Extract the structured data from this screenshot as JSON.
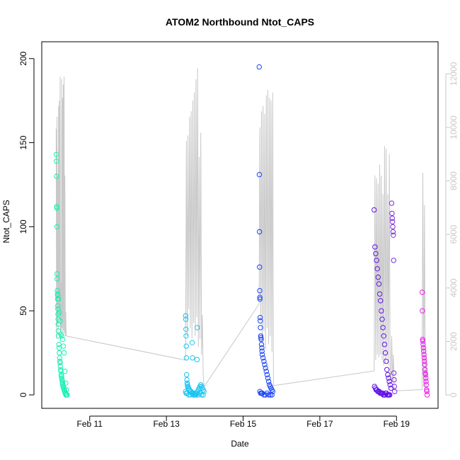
{
  "chart_data": {
    "type": "scatter",
    "title": "ATOM2 Northbound Ntot_CAPS",
    "xlabel": "Date",
    "ylabel": "Ntot_CAPS",
    "xlim": [
      "2000-02-09T18:00",
      "2000-02-20T02:00"
    ],
    "ylim": [
      -8,
      210
    ],
    "y2lim": [
      -500,
      13200
    ],
    "x_ticks": [
      {
        "x": "2000-02-11T00:00",
        "label": "Feb 11"
      },
      {
        "x": "2000-02-13T00:00",
        "label": "Feb 13"
      },
      {
        "x": "2000-02-15T00:00",
        "label": "Feb 15"
      },
      {
        "x": "2000-02-17T00:00",
        "label": "Feb 17"
      },
      {
        "x": "2000-02-19T00:00",
        "label": "Feb 19"
      }
    ],
    "y_ticks": [
      0,
      50,
      100,
      150,
      200
    ],
    "y2_ticks": [
      0,
      2000,
      4000,
      6000,
      8000,
      10000,
      12000
    ],
    "grid": false,
    "colors": {
      "axis": "#000000",
      "right_axis": "#c8c8c8",
      "secondary_line": "#c8c8c8"
    },
    "series": [
      {
        "color": "#19f0b2",
        "x": [
          "2000-02-10T03:05",
          "2000-02-10T03:10",
          "2000-02-10T03:15",
          "2000-02-10T03:20",
          "2000-02-10T03:25",
          "2000-02-10T03:30",
          "2000-02-10T03:35",
          "2000-02-10T03:40",
          "2000-02-10T03:45",
          "2000-02-10T03:50",
          "2000-02-10T03:55",
          "2000-02-10T04:00",
          "2000-02-10T04:05",
          "2000-02-10T04:10",
          "2000-02-10T04:15",
          "2000-02-10T04:20",
          "2000-02-10T04:25",
          "2000-02-10T04:30",
          "2000-02-10T04:40",
          "2000-02-10T04:50",
          "2000-02-10T05:00",
          "2000-02-10T05:10",
          "2000-02-10T05:20",
          "2000-02-10T05:30",
          "2000-02-10T05:40",
          "2000-02-10T05:50",
          "2000-02-10T06:00",
          "2000-02-10T06:10",
          "2000-02-10T06:20",
          "2000-02-10T06:30",
          "2000-02-10T06:40",
          "2000-02-10T06:50",
          "2000-02-10T07:00",
          "2000-02-10T07:10",
          "2000-02-10T07:20",
          "2000-02-10T07:30",
          "2000-02-10T07:40",
          "2000-02-10T07:50",
          "2000-02-10T08:00",
          "2000-02-10T08:10",
          "2000-02-10T08:20",
          "2000-02-10T08:30",
          "2000-02-10T08:40",
          "2000-02-10T08:50",
          "2000-02-10T09:00",
          "2000-02-10T09:10",
          "2000-02-10T09:20",
          "2000-02-10T09:30",
          "2000-02-10T09:40",
          "2000-02-10T09:50",
          "2000-02-10T04:00",
          "2000-02-10T04:30",
          "2000-02-10T05:00",
          "2000-02-10T05:30",
          "2000-02-10T06:00",
          "2000-02-10T06:30",
          "2000-02-10T07:00",
          "2000-02-10T07:30",
          "2000-02-10T08:00",
          "2000-02-10T08:30",
          "2000-02-10T09:00",
          "2000-02-10T09:30"
        ],
        "y": [
          143,
          139,
          130,
          112,
          111,
          100,
          72,
          69,
          62,
          60,
          57,
          53,
          51,
          48,
          45,
          42,
          38,
          35,
          30,
          28,
          25,
          22,
          20,
          19,
          17,
          15,
          14,
          12,
          11,
          10,
          9,
          8,
          7,
          6,
          5,
          5,
          4,
          4,
          3,
          3,
          2,
          2,
          1,
          1,
          1,
          0,
          0,
          0,
          0,
          0,
          59,
          57,
          49,
          44,
          36,
          35,
          33,
          29,
          25,
          14,
          7,
          3
        ]
      },
      {
        "color": "#1ac4f2",
        "x": [
          "2000-02-13T12:05",
          "2000-02-13T12:10",
          "2000-02-13T12:15",
          "2000-02-13T12:20",
          "2000-02-13T12:25",
          "2000-02-13T12:30",
          "2000-02-13T12:40",
          "2000-02-13T12:50",
          "2000-02-13T13:00",
          "2000-02-13T13:10",
          "2000-02-13T13:20",
          "2000-02-13T13:30",
          "2000-02-13T13:40",
          "2000-02-13T13:50",
          "2000-02-13T14:00",
          "2000-02-13T14:30",
          "2000-02-13T15:00",
          "2000-02-13T15:30",
          "2000-02-13T16:00",
          "2000-02-13T16:30",
          "2000-02-13T17:00",
          "2000-02-13T17:30",
          "2000-02-13T18:00",
          "2000-02-13T18:30",
          "2000-02-13T19:00",
          "2000-02-13T19:30",
          "2000-02-13T20:00",
          "2000-02-13T20:30",
          "2000-02-13T21:00",
          "2000-02-13T21:30",
          "2000-02-13T22:00",
          "2000-02-13T22:30",
          "2000-02-13T23:00",
          "2000-02-13T23:30",
          "2000-02-13T16:10",
          "2000-02-13T16:20",
          "2000-02-13T19:10",
          "2000-02-13T19:20",
          "2000-02-13T12:00",
          "2000-02-13T12:20",
          "2000-02-13T13:00",
          "2000-02-13T14:00",
          "2000-02-13T15:00",
          "2000-02-13T17:00",
          "2000-02-13T18:00",
          "2000-02-13T20:00",
          "2000-02-13T21:00",
          "2000-02-13T22:00",
          "2000-02-13T23:00"
        ],
        "y": [
          47,
          45,
          39,
          35,
          29,
          22,
          12,
          9,
          7,
          6,
          5,
          5,
          4,
          4,
          3,
          3,
          2,
          2,
          1,
          1,
          1,
          0,
          0,
          0,
          1,
          2,
          3,
          4,
          5,
          6,
          5,
          4,
          3,
          2,
          31,
          22,
          21,
          40,
          2,
          1,
          1,
          0,
          0,
          0,
          1,
          0,
          1,
          0,
          0
        ]
      },
      {
        "color": "#1b45f5",
        "x": [
          "2000-02-15T10:05",
          "2000-02-15T10:10",
          "2000-02-15T10:15",
          "2000-02-15T10:20",
          "2000-02-15T10:25",
          "2000-02-15T10:30",
          "2000-02-15T10:35",
          "2000-02-15T10:40",
          "2000-02-15T10:45",
          "2000-02-15T10:50",
          "2000-02-15T11:00",
          "2000-02-15T11:10",
          "2000-02-15T11:20",
          "2000-02-15T11:30",
          "2000-02-15T11:40",
          "2000-02-15T11:50",
          "2000-02-15T12:00",
          "2000-02-15T12:30",
          "2000-02-15T13:00",
          "2000-02-15T13:30",
          "2000-02-15T14:00",
          "2000-02-15T14:30",
          "2000-02-15T15:00",
          "2000-02-15T15:30",
          "2000-02-15T16:00",
          "2000-02-15T16:30",
          "2000-02-15T17:00",
          "2000-02-15T17:30",
          "2000-02-15T18:00",
          "2000-02-15T18:30",
          "2000-02-15T10:30",
          "2000-02-15T11:00",
          "2000-02-15T11:30",
          "2000-02-15T12:00",
          "2000-02-15T13:00",
          "2000-02-15T14:00",
          "2000-02-15T15:00",
          "2000-02-15T16:00",
          "2000-02-15T17:00",
          "2000-02-15T18:00"
        ],
        "y": [
          195,
          131,
          97,
          76,
          62,
          58,
          57,
          46,
          44,
          40,
          35,
          34,
          33,
          30,
          28,
          26,
          24,
          22,
          20,
          18,
          16,
          14,
          12,
          10,
          8,
          6,
          5,
          4,
          3,
          2,
          2,
          1,
          1,
          1,
          0,
          0,
          1,
          0,
          0,
          0
        ]
      },
      {
        "color": "#6215e8",
        "x": [
          "2000-02-18T10:00",
          "2000-02-18T10:30",
          "2000-02-18T11:00",
          "2000-02-18T11:30",
          "2000-02-18T12:00",
          "2000-02-18T12:30",
          "2000-02-18T13:00",
          "2000-02-18T13:30",
          "2000-02-18T14:00",
          "2000-02-18T14:30",
          "2000-02-18T15:00",
          "2000-02-18T15:30",
          "2000-02-18T16:00",
          "2000-02-18T16:30",
          "2000-02-18T17:00",
          "2000-02-18T17:30",
          "2000-02-18T18:00",
          "2000-02-18T18:30",
          "2000-02-18T19:00",
          "2000-02-18T19:30",
          "2000-02-18T20:00",
          "2000-02-18T20:30",
          "2000-02-18T10:15",
          "2000-02-18T10:45",
          "2000-02-18T11:15",
          "2000-02-18T11:45",
          "2000-02-18T12:15",
          "2000-02-18T12:45",
          "2000-02-18T13:15",
          "2000-02-18T13:45",
          "2000-02-18T14:15",
          "2000-02-18T14:45",
          "2000-02-18T15:15",
          "2000-02-18T15:45",
          "2000-02-18T16:15",
          "2000-02-18T16:45",
          "2000-02-18T17:15",
          "2000-02-18T17:45",
          "2000-02-18T18:15",
          "2000-02-18T18:45",
          "2000-02-18T19:15",
          "2000-02-18T19:45"
        ],
        "y": [
          110,
          88,
          84,
          80,
          75,
          70,
          66,
          60,
          56,
          50,
          45,
          40,
          35,
          30,
          25,
          20,
          15,
          12,
          10,
          8,
          6,
          4,
          5,
          4,
          3,
          3,
          2,
          2,
          2,
          1,
          1,
          1,
          1,
          0,
          0,
          0,
          1,
          1,
          0,
          0,
          0,
          0
        ]
      },
      {
        "color": "#7b2ee0",
        "x": [
          "2000-02-18T21:00",
          "2000-02-18T21:10",
          "2000-02-18T21:20",
          "2000-02-18T21:30",
          "2000-02-18T21:40",
          "2000-02-18T21:50",
          "2000-02-18T22:00",
          "2000-02-18T22:10",
          "2000-02-18T22:20",
          "2000-02-18T22:30",
          "2000-02-18T22:40",
          "2000-02-18T22:50"
        ],
        "y": [
          114,
          108,
          105,
          103,
          100,
          97,
          95,
          80,
          13,
          9,
          5,
          2
        ]
      },
      {
        "color": "#f01bf2",
        "x": [
          "2000-02-19T16:05",
          "2000-02-19T16:10",
          "2000-02-19T16:20",
          "2000-02-19T16:30",
          "2000-02-19T16:40",
          "2000-02-19T16:50",
          "2000-02-19T17:00",
          "2000-02-19T17:10",
          "2000-02-19T17:20",
          "2000-02-19T17:30",
          "2000-02-19T17:40",
          "2000-02-19T17:50",
          "2000-02-19T18:00",
          "2000-02-19T18:10",
          "2000-02-19T18:20",
          "2000-02-19T18:30",
          "2000-02-19T18:40",
          "2000-02-19T18:50",
          "2000-02-19T19:00",
          "2000-02-19T19:10"
        ],
        "y": [
          61,
          50,
          33,
          32,
          30,
          28,
          26,
          24,
          22,
          20,
          18,
          15,
          13,
          12,
          10,
          8,
          6,
          3,
          2,
          0
        ]
      }
    ],
    "secondary_line": {
      "color": "#c8c8c8",
      "x": [
        "2000-02-10T03:00",
        "2000-02-10T03:15",
        "2000-02-10T03:30",
        "2000-02-10T03:45",
        "2000-02-10T04:00",
        "2000-02-10T04:15",
        "2000-02-10T04:30",
        "2000-02-10T04:45",
        "2000-02-10T05:00",
        "2000-02-10T05:15",
        "2000-02-10T05:30",
        "2000-02-10T05:45",
        "2000-02-10T06:00",
        "2000-02-10T06:15",
        "2000-02-10T06:30",
        "2000-02-10T06:45",
        "2000-02-10T07:00",
        "2000-02-10T07:15",
        "2000-02-10T07:30",
        "2000-02-10T07:45",
        "2000-02-10T08:00",
        "2000-02-10T08:15",
        "2000-02-10T08:30",
        "2000-02-10T08:45",
        "2000-02-10T09:00",
        "2000-02-10T09:15",
        "2000-02-10T09:30",
        "2000-02-13T12:00",
        "2000-02-13T12:30",
        "2000-02-13T13:00",
        "2000-02-13T13:30",
        "2000-02-13T14:00",
        "2000-02-13T14:30",
        "2000-02-13T15:00",
        "2000-02-13T15:30",
        "2000-02-13T16:00",
        "2000-02-13T16:30",
        "2000-02-13T17:00",
        "2000-02-13T17:30",
        "2000-02-13T18:00",
        "2000-02-13T18:30",
        "2000-02-13T19:00",
        "2000-02-13T19:30",
        "2000-02-13T20:00",
        "2000-02-13T20:30",
        "2000-02-13T21:00",
        "2000-02-13T21:30",
        "2000-02-13T22:00",
        "2000-02-13T22:30",
        "2000-02-13T23:00",
        "2000-02-13T23:30",
        "2000-02-15T10:00",
        "2000-02-15T10:30",
        "2000-02-15T11:00",
        "2000-02-15T11:30",
        "2000-02-15T12:00",
        "2000-02-15T12:30",
        "2000-02-15T13:00",
        "2000-02-15T13:30",
        "2000-02-15T14:00",
        "2000-02-15T14:30",
        "2000-02-15T15:00",
        "2000-02-15T15:30",
        "2000-02-15T16:00",
        "2000-02-15T16:30",
        "2000-02-15T17:00",
        "2000-02-15T17:30",
        "2000-02-15T18:00",
        "2000-02-15T18:30",
        "2000-02-15T19:00",
        "2000-02-18T10:00",
        "2000-02-18T10:30",
        "2000-02-18T11:00",
        "2000-02-18T11:30",
        "2000-02-18T12:00",
        "2000-02-18T12:30",
        "2000-02-18T13:00",
        "2000-02-18T13:30",
        "2000-02-18T14:00",
        "2000-02-18T14:30",
        "2000-02-18T15:00",
        "2000-02-18T15:30",
        "2000-02-18T16:00",
        "2000-02-18T16:30",
        "2000-02-18T17:00",
        "2000-02-18T17:30",
        "2000-02-18T18:00",
        "2000-02-18T18:30",
        "2000-02-18T19:00",
        "2000-02-18T19:30",
        "2000-02-18T20:00",
        "2000-02-18T20:30",
        "2000-02-18T21:00",
        "2000-02-18T21:30",
        "2000-02-18T22:00",
        "2000-02-18T22:30",
        "2000-02-18T23:00",
        "2000-02-19T16:00",
        "2000-02-19T16:30",
        "2000-02-19T17:00",
        "2000-02-19T17:30",
        "2000-02-19T18:00",
        "2000-02-19T18:30",
        "2000-02-19T19:00"
      ],
      "y": [
        9950,
        2100,
        10400,
        2600,
        8200,
        2300,
        10800,
        3000,
        11000,
        2800,
        11900,
        2400,
        4200,
        2200,
        11800,
        2500,
        11100,
        2300,
        11600,
        2400,
        11900,
        2300,
        8200,
        2200,
        3100,
        2250,
        2200,
        1300,
        9500,
        2200,
        9700,
        3200,
        10400,
        2500,
        10600,
        2100,
        11000,
        2700,
        11300,
        2200,
        11800,
        2900,
        12200,
        1800,
        8900,
        2100,
        9800,
        1500,
        3000,
        800,
        300,
        3400,
        10000,
        2800,
        10600,
        1900,
        10800,
        2400,
        10500,
        1700,
        11200,
        2500,
        11400,
        1900,
        11100,
        2200,
        11000,
        1600,
        11300,
        350,
        900,
        8200,
        1300,
        8100,
        1500,
        7900,
        1400,
        8600,
        1500,
        8200,
        1300,
        7500,
        1100,
        9300,
        1200,
        9200,
        1400,
        7500,
        1100,
        9000,
        900,
        600,
        2200,
        500,
        1500,
        300,
        150,
        200,
        8300,
        300,
        7100,
        200,
        1500,
        100
      ]
    }
  }
}
